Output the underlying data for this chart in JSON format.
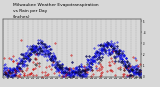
{
  "title": "Milwaukee Weather Evapotranspiration vs Rain per Day (Inches)",
  "title_fontsize": 3.2,
  "background_color": "#d8d8d8",
  "plot_bg_color": "#d8d8d8",
  "grid_color": "#888888",
  "et_color": "#0000dd",
  "rain_color": "#cc0000",
  "black_color": "#111111",
  "ylim": [
    0,
    0.52
  ],
  "yticks": [
    0.0,
    0.1,
    0.2,
    0.3,
    0.4,
    0.5
  ],
  "ytick_labels": [
    "0",
    ".1",
    ".2",
    ".3",
    ".4",
    ".5"
  ],
  "dashed_grid_interval": 26,
  "n_points": 730,
  "seed": 17
}
